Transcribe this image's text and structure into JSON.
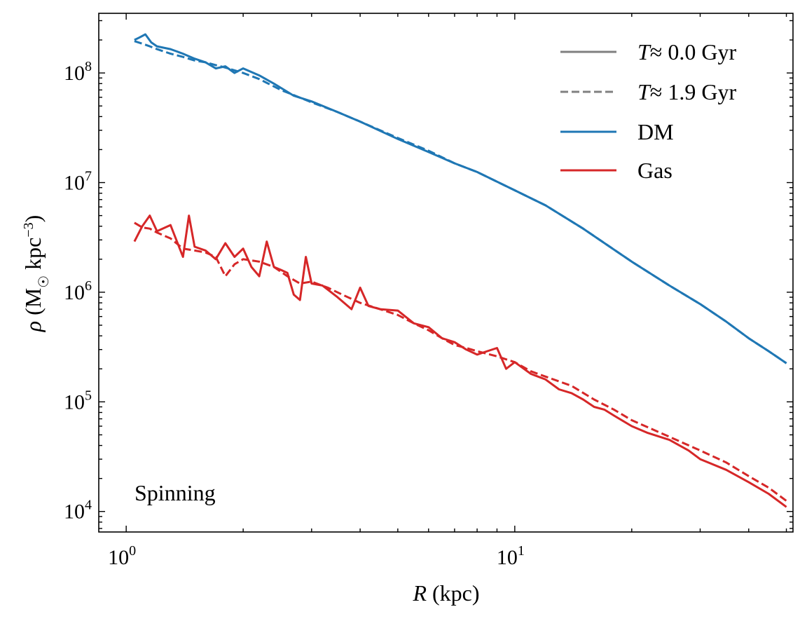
{
  "chart_data": {
    "type": "line",
    "xscale": "log",
    "yscale": "log",
    "xlim": [
      0.85,
      52
    ],
    "ylim": [
      6500,
      350000000
    ],
    "xlabel": "R (kpc)",
    "ylabel": "ρ (M☉ kpc⁻³)",
    "x_ticks": [
      {
        "value": 1,
        "base": "10",
        "exp": "0"
      },
      {
        "value": 10,
        "base": "10",
        "exp": "1"
      }
    ],
    "y_ticks": [
      {
        "value": 10000,
        "base": "10",
        "exp": "4"
      },
      {
        "value": 100000,
        "base": "10",
        "exp": "5"
      },
      {
        "value": 1000000,
        "base": "10",
        "exp": "6"
      },
      {
        "value": 10000000,
        "base": "10",
        "exp": "7"
      },
      {
        "value": 100000000,
        "base": "10",
        "exp": "8"
      }
    ],
    "annotation": "Spinning",
    "legend": [
      {
        "label": "T ≈ 0.0 Gyr",
        "italic": "T",
        "rest": "≈ 0.0 Gyr",
        "color": "#808080",
        "dash": "solid"
      },
      {
        "label": "T ≈ 1.9 Gyr",
        "italic": "T",
        "rest": "≈ 1.9 Gyr",
        "color": "#808080",
        "dash": "dashed"
      },
      {
        "label": "DM",
        "color": "#1f77b4",
        "dash": "solid"
      },
      {
        "label": "Gas",
        "color": "#d62728",
        "dash": "solid"
      }
    ],
    "series": [
      {
        "component": "DM",
        "time": "0.0",
        "color": "#1f77b4",
        "dash": "solid",
        "x": [
          1.05,
          1.08,
          1.12,
          1.16,
          1.2,
          1.3,
          1.4,
          1.5,
          1.6,
          1.7,
          1.8,
          1.9,
          2.0,
          2.2,
          2.4,
          2.7,
          3.0,
          3.5,
          4.0,
          5.0,
          6.0,
          7.0,
          8.0,
          10,
          12,
          15,
          20,
          25,
          30,
          35,
          40,
          45,
          50
        ],
        "y": [
          200000000,
          210000000,
          225000000,
          190000000,
          175000000,
          165000000,
          150000000,
          135000000,
          125000000,
          110000000,
          115000000,
          100000000,
          110000000,
          95000000,
          80000000,
          62000000,
          55000000,
          44000000,
          36000000,
          25000000,
          19000000,
          15000000,
          12500000,
          8500000,
          6200000,
          3800000,
          1900000,
          1150000,
          780000,
          540000,
          380000,
          290000,
          225000
        ]
      },
      {
        "component": "DM",
        "time": "1.9",
        "color": "#1f77b4",
        "dash": "dashed",
        "x": [
          1.05,
          1.1,
          1.15,
          1.2,
          1.3,
          1.4,
          1.5,
          1.6,
          1.7,
          1.8,
          2.0,
          2.2,
          2.5,
          3.0,
          3.5,
          4.0,
          5.0,
          6.0,
          7.0,
          8.0,
          10,
          12,
          15,
          20,
          25,
          30,
          35,
          40,
          45,
          50
        ],
        "y": [
          195000000,
          185000000,
          175000000,
          165000000,
          150000000,
          140000000,
          130000000,
          125000000,
          118000000,
          112000000,
          100000000,
          88000000,
          70000000,
          54000000,
          44000000,
          36000000,
          25500000,
          19500000,
          15000000,
          12500000,
          8500000,
          6200000,
          3800000,
          1900000,
          1150000,
          780000,
          540000,
          380000,
          290000,
          225000
        ]
      },
      {
        "component": "Gas",
        "time": "0.0",
        "color": "#d62728",
        "dash": "solid",
        "x": [
          1.05,
          1.1,
          1.15,
          1.2,
          1.3,
          1.4,
          1.45,
          1.5,
          1.6,
          1.7,
          1.8,
          1.9,
          2.0,
          2.1,
          2.2,
          2.3,
          2.4,
          2.5,
          2.6,
          2.7,
          2.8,
          2.9,
          3.0,
          3.2,
          3.5,
          3.8,
          4.0,
          4.2,
          4.5,
          5.0,
          5.5,
          6.0,
          6.5,
          7.0,
          7.5,
          8.0,
          8.5,
          9.0,
          9.5,
          10,
          11,
          12,
          13,
          14,
          15,
          16,
          17,
          18,
          20,
          22,
          25,
          28,
          30,
          35,
          40,
          45,
          50
        ],
        "y": [
          2900000,
          4000000,
          5000000,
          3600000,
          4100000,
          2100000,
          5000000,
          2600000,
          2400000,
          2000000,
          2800000,
          2100000,
          2500000,
          1700000,
          1400000,
          2900000,
          1700000,
          1600000,
          1500000,
          950000,
          850000,
          2100000,
          1200000,
          1150000,
          900000,
          700000,
          1100000,
          750000,
          700000,
          680000,
          520000,
          480000,
          380000,
          350000,
          300000,
          270000,
          290000,
          310000,
          200000,
          230000,
          180000,
          160000,
          130000,
          120000,
          105000,
          90000,
          85000,
          75000,
          60000,
          52000,
          45000,
          36000,
          30000,
          24000,
          18500,
          14500,
          11000
        ]
      },
      {
        "component": "Gas",
        "time": "1.9",
        "color": "#d62728",
        "dash": "dashed",
        "x": [
          1.05,
          1.1,
          1.15,
          1.2,
          1.3,
          1.4,
          1.5,
          1.6,
          1.7,
          1.8,
          1.9,
          2.0,
          2.2,
          2.4,
          2.6,
          2.8,
          3.0,
          3.3,
          3.6,
          4.0,
          4.5,
          5.0,
          5.5,
          6.0,
          6.5,
          7.0,
          7.5,
          8.0,
          9.0,
          10,
          11,
          12,
          14,
          16,
          18,
          20,
          25,
          30,
          35,
          40,
          45,
          50
        ],
        "y": [
          4300000,
          3900000,
          3800000,
          3500000,
          3100000,
          2500000,
          2400000,
          2300000,
          2100000,
          1400000,
          1800000,
          2000000,
          1900000,
          1700000,
          1400000,
          1200000,
          1250000,
          1100000,
          950000,
          800000,
          700000,
          620000,
          520000,
          450000,
          380000,
          330000,
          310000,
          290000,
          260000,
          230000,
          190000,
          170000,
          140000,
          105000,
          85000,
          68000,
          48000,
          36000,
          28000,
          21000,
          16500,
          12500
        ]
      }
    ]
  }
}
